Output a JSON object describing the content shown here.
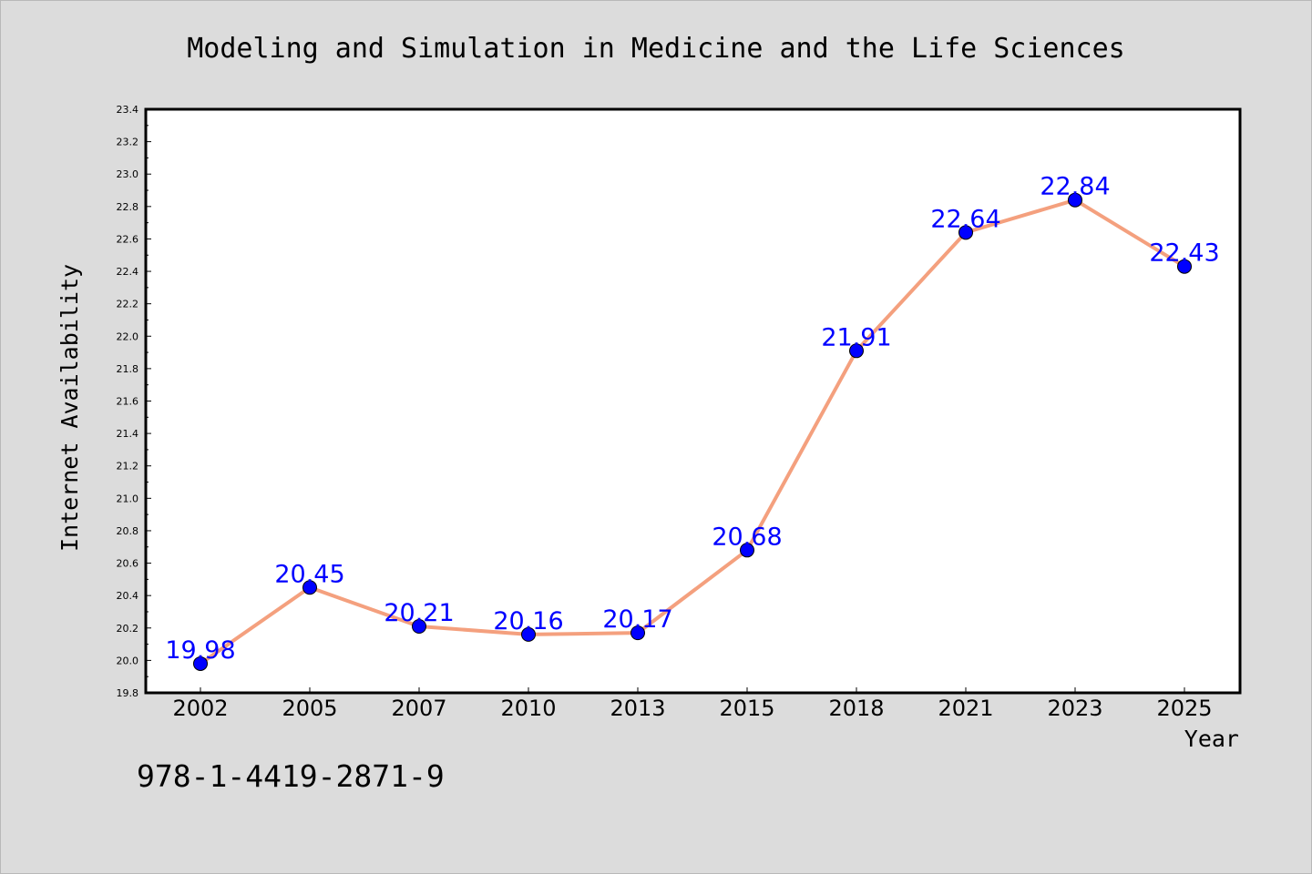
{
  "chart_data": {
    "type": "line",
    "title": "Modeling and Simulation in Medicine and the Life Sciences",
    "xlabel": "Year",
    "ylabel": "Internet Availability",
    "categories": [
      "2002",
      "2005",
      "2007",
      "2010",
      "2013",
      "2015",
      "2018",
      "2021",
      "2023",
      "2025"
    ],
    "values": [
      19.98,
      20.45,
      20.21,
      20.16,
      20.17,
      20.68,
      21.91,
      22.64,
      22.84,
      22.43
    ],
    "data_labels": [
      "19.98",
      "20.45",
      "20.21",
      "20.16",
      "20.17",
      "20.68",
      "21.91",
      "22.64",
      "22.84",
      "22.43"
    ],
    "ylim": [
      19.8,
      23.4
    ],
    "yticks": [
      "19.8",
      "20.0",
      "20.2",
      "20.4",
      "20.6",
      "20.8",
      "21.0",
      "21.2",
      "21.4",
      "21.6",
      "21.8",
      "22.0",
      "22.2",
      "22.4",
      "22.6",
      "22.8",
      "23.0",
      "23.2",
      "23.4"
    ],
    "grid": false,
    "legend": "none",
    "line_color": "#f4a07e",
    "marker_color": "#0000ff",
    "label_color": "#0000ff"
  },
  "footer_text": "978-1-4419-2871-9"
}
